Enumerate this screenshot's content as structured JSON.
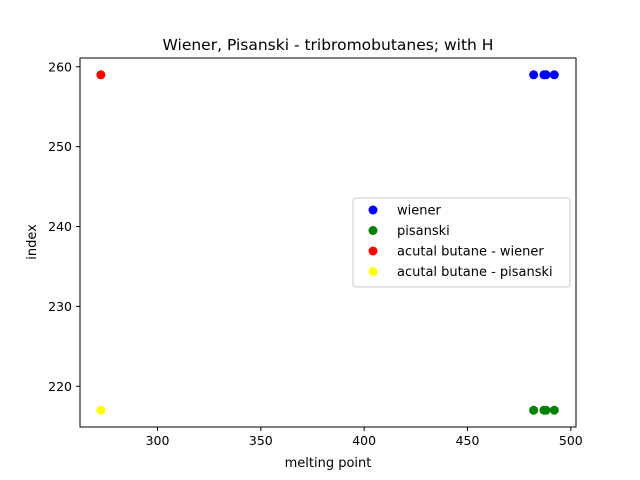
{
  "chart_data": {
    "type": "scatter",
    "title": "Wiener, Pisanski - tribromobutanes; with H",
    "xlabel": "melting point",
    "ylabel": "index",
    "xlim": [
      262.5,
      502.5
    ],
    "ylim": [
      214.9,
      261.1
    ],
    "xticks": [
      300,
      350,
      400,
      450,
      500
    ],
    "yticks": [
      220,
      230,
      240,
      250,
      260
    ],
    "grid": false,
    "legend_position": "center-right",
    "series": [
      {
        "name": "wiener",
        "color": "#0000ff",
        "x": [
          482,
          487,
          488,
          492
        ],
        "y": [
          259,
          259,
          259,
          259
        ]
      },
      {
        "name": "pisanski",
        "color": "#008000",
        "x": [
          482,
          487,
          488,
          492
        ],
        "y": [
          217,
          217,
          217,
          217
        ]
      },
      {
        "name": "acutal butane - wiener",
        "color": "#ff0000",
        "x": [
          272.6
        ],
        "y": [
          259
        ]
      },
      {
        "name": "acutal butane - pisanski",
        "color": "#ffff00",
        "x": [
          272.6
        ],
        "y": [
          217
        ]
      }
    ]
  }
}
